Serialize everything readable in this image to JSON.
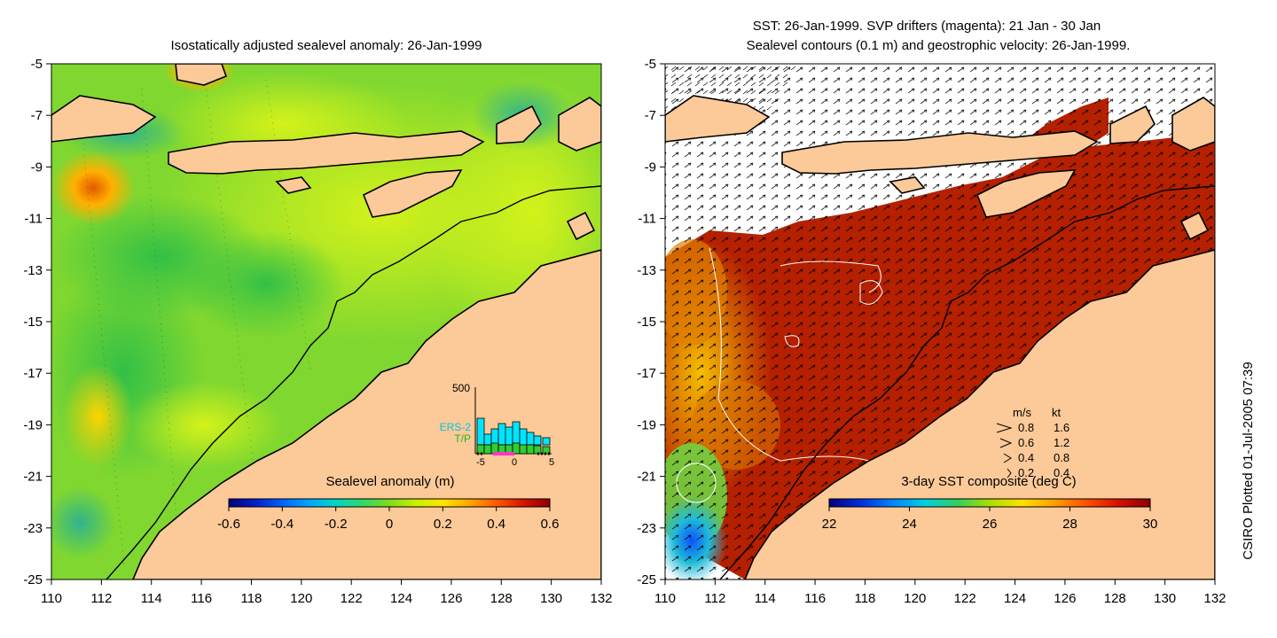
{
  "left_map": {
    "title": "Isostatically adjusted sealevel anomaly: 26-Jan-1999",
    "colorbar": {
      "label": "Sealevel anomaly (m)",
      "ticks": [
        "-0.6",
        "-0.4",
        "-0.2",
        "0",
        "0.2",
        "0.4",
        "0.6"
      ],
      "colors": [
        "#00007e",
        "#0021c8",
        "#0063ff",
        "#00a8ff",
        "#00d6c8",
        "#2fd96a",
        "#7ddc1e",
        "#c9f000",
        "#ffe400",
        "#ffa600",
        "#ff5a00",
        "#d81400",
        "#8c0000"
      ]
    },
    "inset": {
      "ymax_label": "500",
      "legend": [
        "ERS-2",
        "T/P"
      ],
      "legend_colors": [
        "#00e5ff",
        "#33cc33"
      ],
      "xticks": [
        "-5",
        "0",
        "5"
      ]
    }
  },
  "right_map": {
    "title_line1": "SST: 26-Jan-1999. SVP drifters (magenta): 21 Jan - 30 Jan",
    "title_line2": "Sealevel contours (0.1 m) and geostrophic velocity: 26-Jan-1999.",
    "colorbar": {
      "label": "3-day SST composite (deg C)",
      "ticks": [
        "22",
        "24",
        "26",
        "28",
        "30"
      ],
      "colors": [
        "#00007e",
        "#0030e0",
        "#0088ff",
        "#00d0e0",
        "#30d060",
        "#a8e000",
        "#ffe000",
        "#ffa000",
        "#ff5000",
        "#d81000",
        "#8c0000"
      ]
    },
    "velocity_key": {
      "header": [
        "m/s",
        "kt"
      ],
      "rows": [
        [
          "0.8",
          "1.6"
        ],
        [
          "0.6",
          "1.2"
        ],
        [
          "0.4",
          "0.8"
        ],
        [
          "0.2",
          "0.4"
        ]
      ]
    }
  },
  "axes": {
    "x_ticks": [
      "110",
      "112",
      "114",
      "116",
      "118",
      "120",
      "122",
      "124",
      "126",
      "128",
      "130",
      "132"
    ],
    "y_ticks": [
      "-5",
      "-7",
      "-9",
      "-11",
      "-13",
      "-15",
      "-17",
      "-19",
      "-21",
      "-23",
      "-25"
    ]
  },
  "credit": "CSIRO Plotted 01-Jul-2005 07:39",
  "colors": {
    "land": "#fcc998",
    "ocean_green": "#5fd13c",
    "ocean_yellow": "#c7ef1a",
    "sst_hot": "#b42000"
  }
}
